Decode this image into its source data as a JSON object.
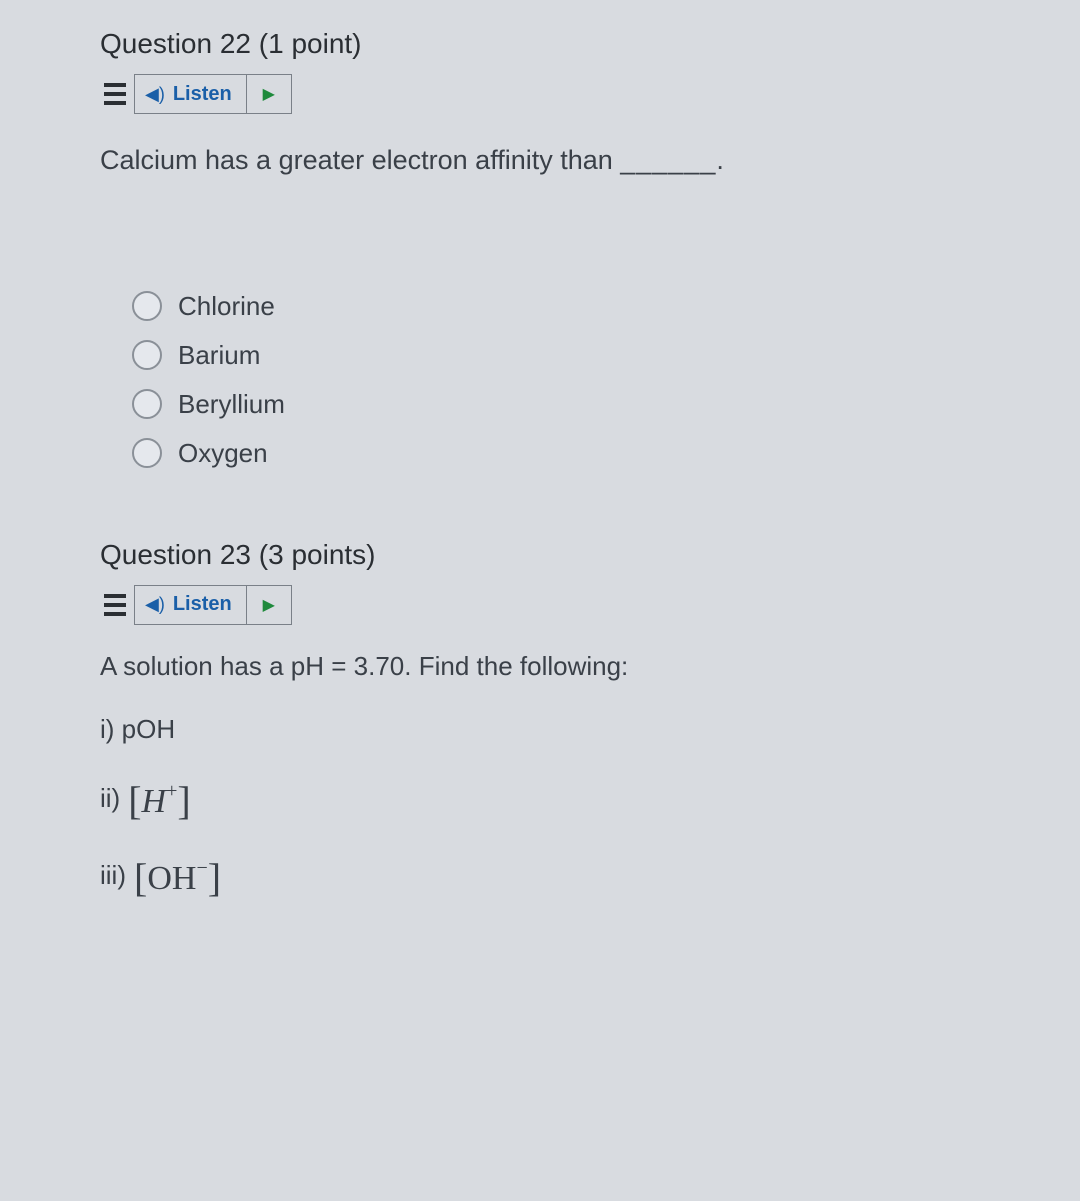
{
  "q22": {
    "title_prefix": "Question 22",
    "points": "(1 point)",
    "listen_label": "Listen",
    "prompt": "Calcium has a greater electron affinity than",
    "blank": "______.",
    "options": [
      "Chlorine",
      "Barium",
      "Beryllium",
      "Oxygen"
    ]
  },
  "q23": {
    "title_prefix": "Question 23",
    "points": "(3 points)",
    "listen_label": "Listen",
    "prompt": "A solution has a pH = 3.70.  Find the following:",
    "item_i_label": "i) pOH",
    "item_ii_prefix": "ii)",
    "item_ii_formula_base": "H",
    "item_ii_formula_sup": "+",
    "item_iii_prefix": "iii)",
    "item_iii_formula_base": "OH",
    "item_iii_formula_sup": "−"
  }
}
